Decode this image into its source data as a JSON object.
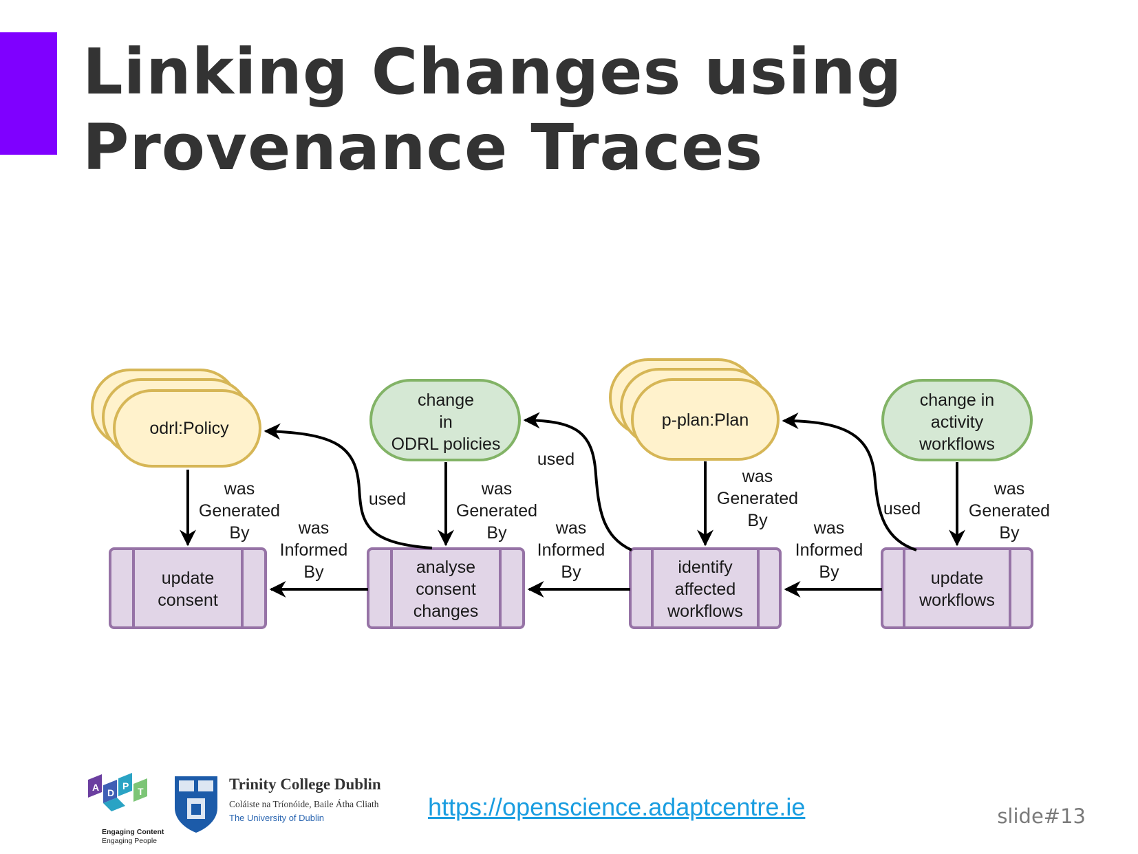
{
  "slide": {
    "title_line1": "Linking Changes using",
    "title_line2": "Provenance Traces",
    "link": "https://openscience.adaptcentre.ie",
    "slide_number": "slide#13",
    "accent_color": "#7f00ff"
  },
  "logos": {
    "tcd_name": "Trinity College Dublin",
    "tcd_irish": "Coláiste na Tríonóide, Baile Átha Cliath",
    "tcd_university": "The University of Dublin",
    "adapt_tagline_1": "Engaging Content",
    "adapt_tagline_2": "Engaging People"
  },
  "diagram": {
    "colors": {
      "entity_yellow_fill": "#fff2cc",
      "entity_yellow_stroke": "#d6b656",
      "entity_green_fill": "#d5e8d4",
      "entity_green_stroke": "#82b366",
      "activity_fill": "#e1d5e7",
      "activity_stroke": "#9673a6"
    },
    "nodes": {
      "odrl_policy": "odrl:Policy",
      "change_odrl_1": "change",
      "change_odrl_2": "in",
      "change_odrl_3": "ODRL policies",
      "pplan": "p-plan:Plan",
      "change_act_1": "change in",
      "change_act_2": "activity",
      "change_act_3": "workflows",
      "update_consent_1": "update",
      "update_consent_2": "consent",
      "analyse_1": "analyse",
      "analyse_2": "consent",
      "analyse_3": "changes",
      "identify_1": "identify",
      "identify_2": "affected",
      "identify_3": "workflows",
      "update_wf_1": "update",
      "update_wf_2": "workflows"
    },
    "edge_labels": {
      "was": "was",
      "generated": "Generated",
      "by": "By",
      "informed": "Informed",
      "used": "used"
    }
  }
}
